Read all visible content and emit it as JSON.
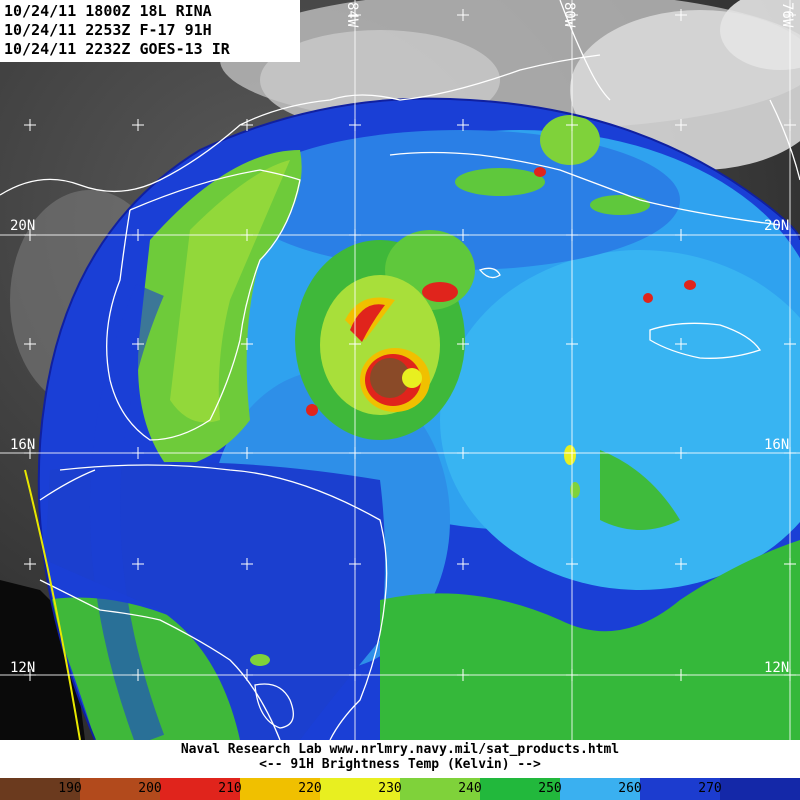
{
  "header": {
    "lines": [
      "10/24/11 1800Z 18L RINA",
      "10/24/11 2253Z F-17 91H",
      "10/24/11 2232Z GOES-13 IR"
    ]
  },
  "grid": {
    "lat_labels": [
      "20N",
      "16N",
      "12N"
    ],
    "lon_labels": [
      "84W",
      "80W",
      "76W"
    ]
  },
  "footer": {
    "credit": "Naval Research Lab  www.nrlmry.navy.mil/sat_products.html",
    "scale_title": "<--   91H Brightness Temp (Kelvin)   -->"
  },
  "colorbar": {
    "tick_labels": [
      "190",
      "200",
      "210",
      "220",
      "230",
      "240",
      "250",
      "260",
      "270"
    ],
    "colors": [
      "#6b3a1e",
      "#b24a1c",
      "#e0241c",
      "#f0c000",
      "#e8ef20",
      "#7fd23a",
      "#22b83c",
      "#3ab0f0",
      "#1c3ccf",
      "#1428a8"
    ]
  },
  "palette": {
    "ir_background": "#6e6e6e",
    "cloud": "#d4d4d4",
    "land_outline": "#ffffff",
    "grid": "#ffffff",
    "track": "#e8e800"
  }
}
